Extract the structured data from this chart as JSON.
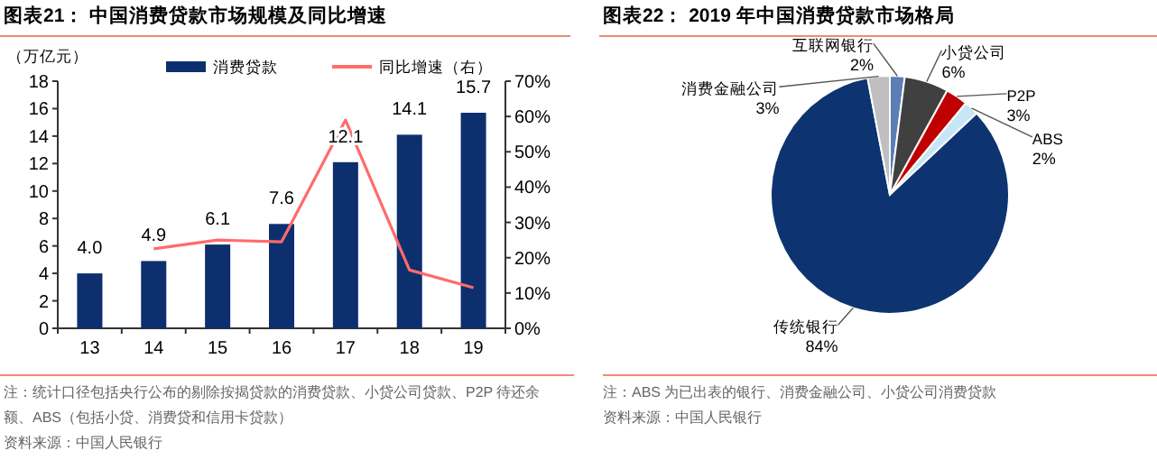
{
  "chart_data": [
    {
      "type": "bar",
      "title": "图表21：  中国消费贷款市场规模及同比增速",
      "ylabel": "（万亿元）",
      "categories": [
        "13",
        "14",
        "15",
        "16",
        "17",
        "18",
        "19"
      ],
      "series": [
        {
          "name": "消费贷款",
          "type": "bar",
          "color": "#0d2f6e",
          "values": [
            4.0,
            4.9,
            6.1,
            7.6,
            12.1,
            14.1,
            15.7
          ],
          "value_labels": [
            "4.0",
            "4.9",
            "6.1",
            "7.6",
            "12.1",
            "14.1",
            "15.7"
          ]
        },
        {
          "name": "同比增速（右）",
          "type": "line",
          "axis": "y2",
          "color": "#ff6b6b",
          "values": [
            null,
            22.5,
            25,
            24.5,
            59,
            16.5,
            11.5
          ]
        }
      ],
      "ylim": [
        0,
        18
      ],
      "yticks": [
        0,
        2,
        4,
        6,
        8,
        10,
        12,
        14,
        16,
        18
      ],
      "y2lim": [
        0,
        70
      ],
      "y2ticks": [
        {
          "value": 0,
          "label": "0%"
        },
        {
          "value": 10,
          "label": "10%"
        },
        {
          "value": 20,
          "label": "20%"
        },
        {
          "value": 30,
          "label": "30%"
        },
        {
          "value": 40,
          "label": "40%"
        },
        {
          "value": 50,
          "label": "50%"
        },
        {
          "value": 60,
          "label": "60%"
        },
        {
          "value": 70,
          "label": "70%"
        }
      ],
      "legend": "top",
      "annotations": [
        "注：统计口径包括央行公布的剔除按揭贷款的消费贷款、小贷公司贷款、P2P 待还余额、ABS（包括小贷、消费贷和信用卡贷款）",
        "资料来源：中国人民银行"
      ]
    },
    {
      "type": "pie",
      "title": "图表22：  2019 年中国消费贷款市场格局",
      "categories": [
        "互联网银行",
        "小贷公司",
        "P2P",
        "ABS",
        "传统银行",
        "消费金融公司"
      ],
      "values": [
        2,
        6,
        3,
        2,
        84,
        3
      ],
      "value_labels": [
        "2%",
        "6%",
        "3%",
        "2%",
        "84%",
        "3%"
      ],
      "colors": [
        "#5b7fb5",
        "#404040",
        "#c00000",
        "#c6e6f5",
        "#0d3470",
        "#bfbfbf"
      ],
      "annotations": [
        "注：ABS 为已出表的银行、消费金融公司、小贷公司消费贷款",
        "资料来源：中国人民银行"
      ]
    }
  ]
}
